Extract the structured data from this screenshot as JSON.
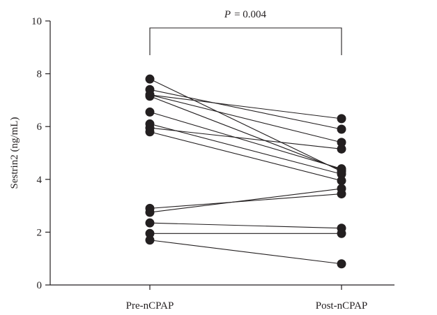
{
  "chart_data": {
    "type": "scatter",
    "subtype": "paired-before-after",
    "categories": [
      "Pre-nCPAP",
      "Post-nCPAP"
    ],
    "ylabel": "Sestrin2 (ng/mL)",
    "xlabel": "",
    "ylim": [
      0,
      10
    ],
    "yticks": [
      "0",
      "2",
      "4",
      "6",
      "8",
      "10"
    ],
    "grid": false,
    "annotation": {
      "p_symbol": "P",
      "p_value": "= 0.004"
    },
    "pairs": [
      {
        "pre": 7.8,
        "post": 4.3
      },
      {
        "pre": 7.4,
        "post": 5.9
      },
      {
        "pre": 7.2,
        "post": 6.3
      },
      {
        "pre": 7.2,
        "post": 5.4
      },
      {
        "pre": 7.15,
        "post": 4.35
      },
      {
        "pre": 6.55,
        "post": 4.4
      },
      {
        "pre": 6.1,
        "post": 4.2
      },
      {
        "pre": 5.95,
        "post": 5.15
      },
      {
        "pre": 5.8,
        "post": 3.95
      },
      {
        "pre": 2.9,
        "post": 3.45
      },
      {
        "pre": 2.75,
        "post": 3.65
      },
      {
        "pre": 2.35,
        "post": 2.15
      },
      {
        "pre": 1.95,
        "post": 1.95
      },
      {
        "pre": 1.7,
        "post": 0.8
      }
    ]
  }
}
